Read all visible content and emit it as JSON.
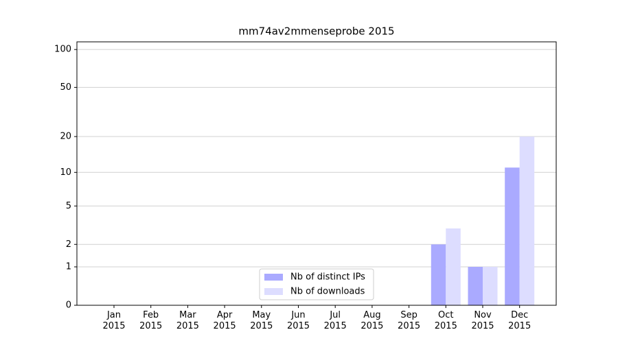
{
  "chart_data": {
    "type": "bar",
    "title": "mm74av2mmenseprobe 2015",
    "categories": [
      "Jan\n2015",
      "Feb\n2015",
      "Mar\n2015",
      "Apr\n2015",
      "May\n2015",
      "Jun\n2015",
      "Jul\n2015",
      "Aug\n2015",
      "Sep\n2015",
      "Oct\n2015",
      "Nov\n2015",
      "Dec\n2015"
    ],
    "series": [
      {
        "name": "Nb of distinct IPs",
        "color": "#aaaaff",
        "values": [
          0,
          0,
          0,
          0,
          0,
          0,
          0,
          0,
          0,
          2,
          1,
          11
        ]
      },
      {
        "name": "Nb of downloads",
        "color": "#ddddff",
        "values": [
          0,
          0,
          0,
          0,
          0,
          0,
          0,
          0,
          0,
          3,
          1,
          20
        ]
      }
    ],
    "yscale": "symlog",
    "ylim": [
      0,
      115
    ],
    "yticks": [
      0,
      1,
      2,
      5,
      10,
      20,
      50,
      100
    ],
    "grid": true,
    "legend": "lower center"
  }
}
